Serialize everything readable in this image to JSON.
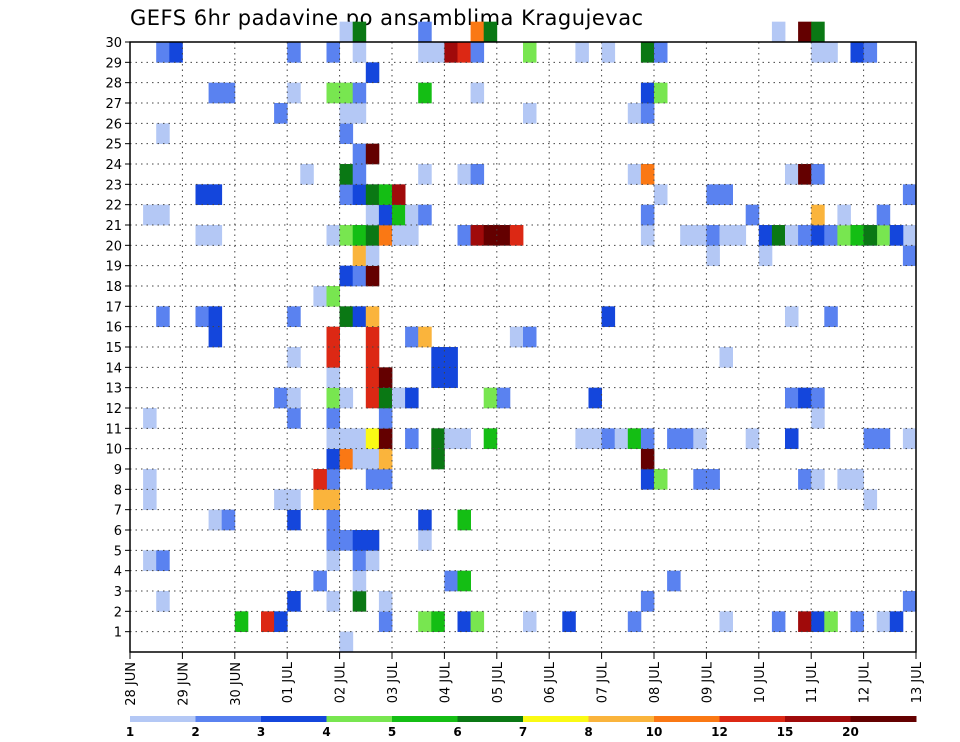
{
  "title": "GEFS 6hr padavine po ansamblima Kragujevac",
  "chart_data": {
    "type": "heatmap",
    "title": "GEFS 6hr padavine po ansamblima Kragujevac",
    "x_ticks": [
      "28 JUN",
      "29 JUN",
      "30 JUN",
      "01 JUL",
      "02 JUL",
      "03 JUL",
      "04 JUL",
      "05 JUL",
      "06 JUL",
      "07 JUL",
      "08 JUL",
      "09 JUL",
      "10 JUL",
      "11 JUL",
      "12 JUL",
      "13 JUL"
    ],
    "y_ticks": [
      1,
      2,
      3,
      4,
      5,
      6,
      7,
      8,
      9,
      10,
      11,
      12,
      13,
      14,
      15,
      16,
      17,
      18,
      19,
      20,
      21,
      22,
      23,
      24,
      25,
      26,
      27,
      28,
      29,
      30
    ],
    "x_range": [
      0,
      60
    ],
    "y_range": [
      0,
      30
    ],
    "grid": true,
    "colorbar": {
      "labels": [
        "1",
        "2",
        "3",
        "4",
        "5",
        "6",
        "7",
        "8",
        "10",
        "12",
        "15",
        "20"
      ],
      "colors": [
        "#b4c8f5",
        "#5a82f0",
        "#1446dc",
        "#78e650",
        "#14be14",
        "#0a7814",
        "#fafa14",
        "#fab43c",
        "#fa7814",
        "#dc2814",
        "#a00a0a",
        "#640000"
      ]
    },
    "cells": [
      [
        16,
        0,
        1
      ],
      [
        16,
        0,
        1
      ],
      [
        8,
        1,
        5
      ],
      [
        10,
        1,
        10
      ],
      [
        11,
        1,
        3
      ],
      [
        19,
        1,
        2
      ],
      [
        22,
        1,
        4
      ],
      [
        23,
        1,
        5
      ],
      [
        25,
        1,
        3
      ],
      [
        26,
        1,
        4
      ],
      [
        30,
        1,
        1
      ],
      [
        33,
        1,
        3
      ],
      [
        38,
        1,
        2
      ],
      [
        45,
        1,
        1
      ],
      [
        49,
        1,
        2
      ],
      [
        51,
        1,
        11
      ],
      [
        52,
        1,
        3
      ],
      [
        53,
        1,
        4
      ],
      [
        55,
        1,
        2
      ],
      [
        57,
        1,
        1
      ],
      [
        58,
        1,
        3
      ],
      [
        2,
        2,
        1
      ],
      [
        12,
        2,
        3
      ],
      [
        15,
        2,
        1
      ],
      [
        17,
        2,
        6
      ],
      [
        19,
        2,
        1
      ],
      [
        39,
        2,
        2
      ],
      [
        59,
        2,
        2
      ],
      [
        14,
        3,
        2
      ],
      [
        17,
        3,
        1
      ],
      [
        24,
        3,
        2
      ],
      [
        25,
        3,
        5
      ],
      [
        41,
        3,
        2
      ],
      [
        1,
        4,
        1
      ],
      [
        2,
        4,
        2
      ],
      [
        15,
        4,
        1
      ],
      [
        17,
        4,
        2
      ],
      [
        18,
        4,
        1
      ],
      [
        15,
        5,
        2
      ],
      [
        16,
        5,
        2
      ],
      [
        17,
        5,
        3
      ],
      [
        18,
        5,
        3
      ],
      [
        22,
        5,
        1
      ],
      [
        6,
        6,
        1
      ],
      [
        7,
        6,
        2
      ],
      [
        12,
        6,
        3
      ],
      [
        15,
        6,
        2
      ],
      [
        22,
        6,
        3
      ],
      [
        25,
        6,
        5
      ],
      [
        1,
        7,
        1
      ],
      [
        11,
        7,
        1
      ],
      [
        12,
        7,
        1
      ],
      [
        14,
        7,
        8
      ],
      [
        15,
        7,
        8
      ],
      [
        56,
        7,
        1
      ],
      [
        1,
        8,
        1
      ],
      [
        15,
        8,
        2
      ],
      [
        14,
        8,
        10
      ],
      [
        18,
        8,
        2
      ],
      [
        19,
        8,
        2
      ],
      [
        39,
        8,
        3
      ],
      [
        40,
        8,
        4
      ],
      [
        43,
        8,
        2
      ],
      [
        44,
        8,
        2
      ],
      [
        51,
        8,
        2
      ],
      [
        52,
        8,
        1
      ],
      [
        54,
        8,
        1
      ],
      [
        55,
        8,
        1
      ],
      [
        15,
        9,
        3
      ],
      [
        16,
        9,
        9
      ],
      [
        17,
        9,
        1
      ],
      [
        18,
        9,
        1
      ],
      [
        19,
        9,
        8
      ],
      [
        23,
        9,
        6
      ],
      [
        39,
        9,
        12
      ],
      [
        15,
        10,
        1
      ],
      [
        16,
        10,
        1
      ],
      [
        17,
        10,
        1
      ],
      [
        18,
        10,
        7
      ],
      [
        19,
        10,
        12
      ],
      [
        21,
        10,
        2
      ],
      [
        23,
        10,
        6
      ],
      [
        24,
        10,
        1
      ],
      [
        25,
        10,
        1
      ],
      [
        27,
        10,
        5
      ],
      [
        34,
        10,
        1
      ],
      [
        35,
        10,
        1
      ],
      [
        36,
        10,
        2
      ],
      [
        37,
        10,
        1
      ],
      [
        38,
        10,
        5
      ],
      [
        39,
        10,
        2
      ],
      [
        41,
        10,
        2
      ],
      [
        42,
        10,
        2
      ],
      [
        43,
        10,
        1
      ],
      [
        47,
        10,
        1
      ],
      [
        50,
        10,
        3
      ],
      [
        56,
        10,
        2
      ],
      [
        57,
        10,
        2
      ],
      [
        59,
        10,
        1
      ],
      [
        1,
        11,
        1
      ],
      [
        12,
        11,
        2
      ],
      [
        15,
        11,
        2
      ],
      [
        19,
        11,
        2
      ],
      [
        52,
        11,
        1
      ],
      [
        11,
        12,
        2
      ],
      [
        12,
        12,
        1
      ],
      [
        15,
        12,
        4
      ],
      [
        16,
        12,
        1
      ],
      [
        18,
        12,
        10
      ],
      [
        19,
        12,
        6
      ],
      [
        20,
        12,
        1
      ],
      [
        21,
        12,
        3
      ],
      [
        27,
        12,
        4
      ],
      [
        28,
        12,
        2
      ],
      [
        35,
        12,
        3
      ],
      [
        50,
        12,
        2
      ],
      [
        51,
        12,
        3
      ],
      [
        52,
        12,
        2
      ],
      [
        15,
        13,
        1
      ],
      [
        18,
        13,
        10
      ],
      [
        19,
        13,
        12
      ],
      [
        23,
        13,
        3
      ],
      [
        24,
        13,
        3
      ],
      [
        12,
        14,
        1
      ],
      [
        15,
        14,
        10
      ],
      [
        18,
        14,
        10
      ],
      [
        23,
        14,
        3
      ],
      [
        24,
        14,
        3
      ],
      [
        45,
        14,
        1
      ],
      [
        6,
        15,
        3
      ],
      [
        15,
        15,
        10
      ],
      [
        18,
        15,
        10
      ],
      [
        21,
        15,
        2
      ],
      [
        22,
        15,
        8
      ],
      [
        29,
        15,
        1
      ],
      [
        30,
        15,
        2
      ],
      [
        2,
        16,
        2
      ],
      [
        5,
        16,
        2
      ],
      [
        6,
        16,
        3
      ],
      [
        12,
        16,
        2
      ],
      [
        16,
        16,
        6
      ],
      [
        17,
        16,
        3
      ],
      [
        18,
        16,
        8
      ],
      [
        36,
        16,
        3
      ],
      [
        50,
        16,
        1
      ],
      [
        53,
        16,
        2
      ],
      [
        14,
        17,
        1
      ],
      [
        15,
        17,
        4
      ],
      [
        16,
        18,
        3
      ],
      [
        17,
        18,
        2
      ],
      [
        18,
        18,
        12
      ],
      [
        17,
        19,
        8
      ],
      [
        18,
        19,
        1
      ],
      [
        44,
        19,
        1
      ],
      [
        48,
        19,
        1
      ],
      [
        59,
        19,
        2
      ],
      [
        5,
        20,
        1
      ],
      [
        6,
        20,
        1
      ],
      [
        15,
        20,
        1
      ],
      [
        16,
        20,
        4
      ],
      [
        17,
        20,
        5
      ],
      [
        18,
        20,
        6
      ],
      [
        19,
        20,
        9
      ],
      [
        20,
        20,
        1
      ],
      [
        21,
        20,
        1
      ],
      [
        25,
        20,
        2
      ],
      [
        26,
        20,
        11
      ],
      [
        27,
        20,
        12
      ],
      [
        28,
        20,
        12
      ],
      [
        29,
        20,
        10
      ],
      [
        39,
        20,
        1
      ],
      [
        42,
        20,
        1
      ],
      [
        43,
        20,
        1
      ],
      [
        44,
        20,
        2
      ],
      [
        45,
        20,
        1
      ],
      [
        46,
        20,
        1
      ],
      [
        48,
        20,
        3
      ],
      [
        49,
        20,
        6
      ],
      [
        50,
        20,
        9
      ],
      [
        56,
        20,
        2
      ],
      [
        57,
        20,
        4
      ],
      [
        58,
        20,
        1
      ],
      [
        59,
        20,
        1
      ],
      [
        50,
        20,
        1
      ],
      [
        51,
        20,
        2
      ],
      [
        52,
        20,
        3
      ],
      [
        53,
        20,
        2
      ],
      [
        54,
        20,
        4
      ],
      [
        55,
        20,
        5
      ],
      [
        56,
        20,
        6
      ],
      [
        58,
        20,
        3
      ],
      [
        1,
        21,
        1
      ],
      [
        2,
        21,
        1
      ],
      [
        18,
        21,
        1
      ],
      [
        19,
        21,
        3
      ],
      [
        20,
        21,
        5
      ],
      [
        21,
        21,
        1
      ],
      [
        22,
        21,
        2
      ],
      [
        39,
        21,
        2
      ],
      [
        47,
        21,
        2
      ],
      [
        52,
        21,
        8
      ],
      [
        54,
        21,
        1
      ],
      [
        57,
        21,
        2
      ],
      [
        5,
        22,
        3
      ],
      [
        6,
        22,
        3
      ],
      [
        16,
        22,
        2
      ],
      [
        17,
        22,
        3
      ],
      [
        18,
        22,
        6
      ],
      [
        19,
        22,
        5
      ],
      [
        20,
        22,
        11
      ],
      [
        40,
        22,
        1
      ],
      [
        44,
        22,
        2
      ],
      [
        45,
        22,
        2
      ],
      [
        59,
        22,
        2
      ],
      [
        13,
        23,
        1
      ],
      [
        16,
        23,
        6
      ],
      [
        17,
        23,
        2
      ],
      [
        22,
        23,
        1
      ],
      [
        25,
        23,
        1
      ],
      [
        26,
        23,
        2
      ],
      [
        38,
        23,
        1
      ],
      [
        39,
        23,
        9
      ],
      [
        50,
        23,
        1
      ],
      [
        51,
        23,
        12
      ],
      [
        52,
        23,
        2
      ],
      [
        17,
        24,
        2
      ],
      [
        18,
        24,
        12
      ],
      [
        2,
        25,
        1
      ],
      [
        16,
        25,
        2
      ],
      [
        11,
        26,
        2
      ],
      [
        16,
        26,
        1
      ],
      [
        17,
        26,
        1
      ],
      [
        30,
        26,
        1
      ],
      [
        38,
        26,
        1
      ],
      [
        39,
        26,
        2
      ],
      [
        6,
        27,
        2
      ],
      [
        7,
        27,
        2
      ],
      [
        12,
        27,
        1
      ],
      [
        15,
        27,
        4
      ],
      [
        16,
        27,
        4
      ],
      [
        17,
        27,
        2
      ],
      [
        22,
        27,
        5
      ],
      [
        26,
        27,
        1
      ],
      [
        39,
        27,
        3
      ],
      [
        40,
        27,
        4
      ],
      [
        18,
        28,
        3
      ],
      [
        2,
        29,
        2
      ],
      [
        3,
        29,
        3
      ],
      [
        12,
        29,
        2
      ],
      [
        15,
        29,
        2
      ],
      [
        17,
        29,
        1
      ],
      [
        22,
        29,
        1
      ],
      [
        23,
        29,
        1
      ],
      [
        24,
        29,
        11
      ],
      [
        25,
        29,
        10
      ],
      [
        26,
        29,
        2
      ],
      [
        30,
        29,
        4
      ],
      [
        34,
        29,
        1
      ],
      [
        36,
        29,
        1
      ],
      [
        39,
        29,
        6
      ],
      [
        40,
        29,
        2
      ],
      [
        52,
        29,
        1
      ],
      [
        53,
        29,
        1
      ],
      [
        55,
        29,
        3
      ],
      [
        56,
        29,
        2
      ],
      [
        16,
        30,
        1
      ],
      [
        17,
        30,
        6
      ],
      [
        22,
        30,
        2
      ],
      [
        26,
        30,
        9
      ],
      [
        27,
        30,
        6
      ],
      [
        49,
        30,
        1
      ],
      [
        51,
        30,
        12
      ],
      [
        52,
        30,
        6
      ]
    ]
  }
}
